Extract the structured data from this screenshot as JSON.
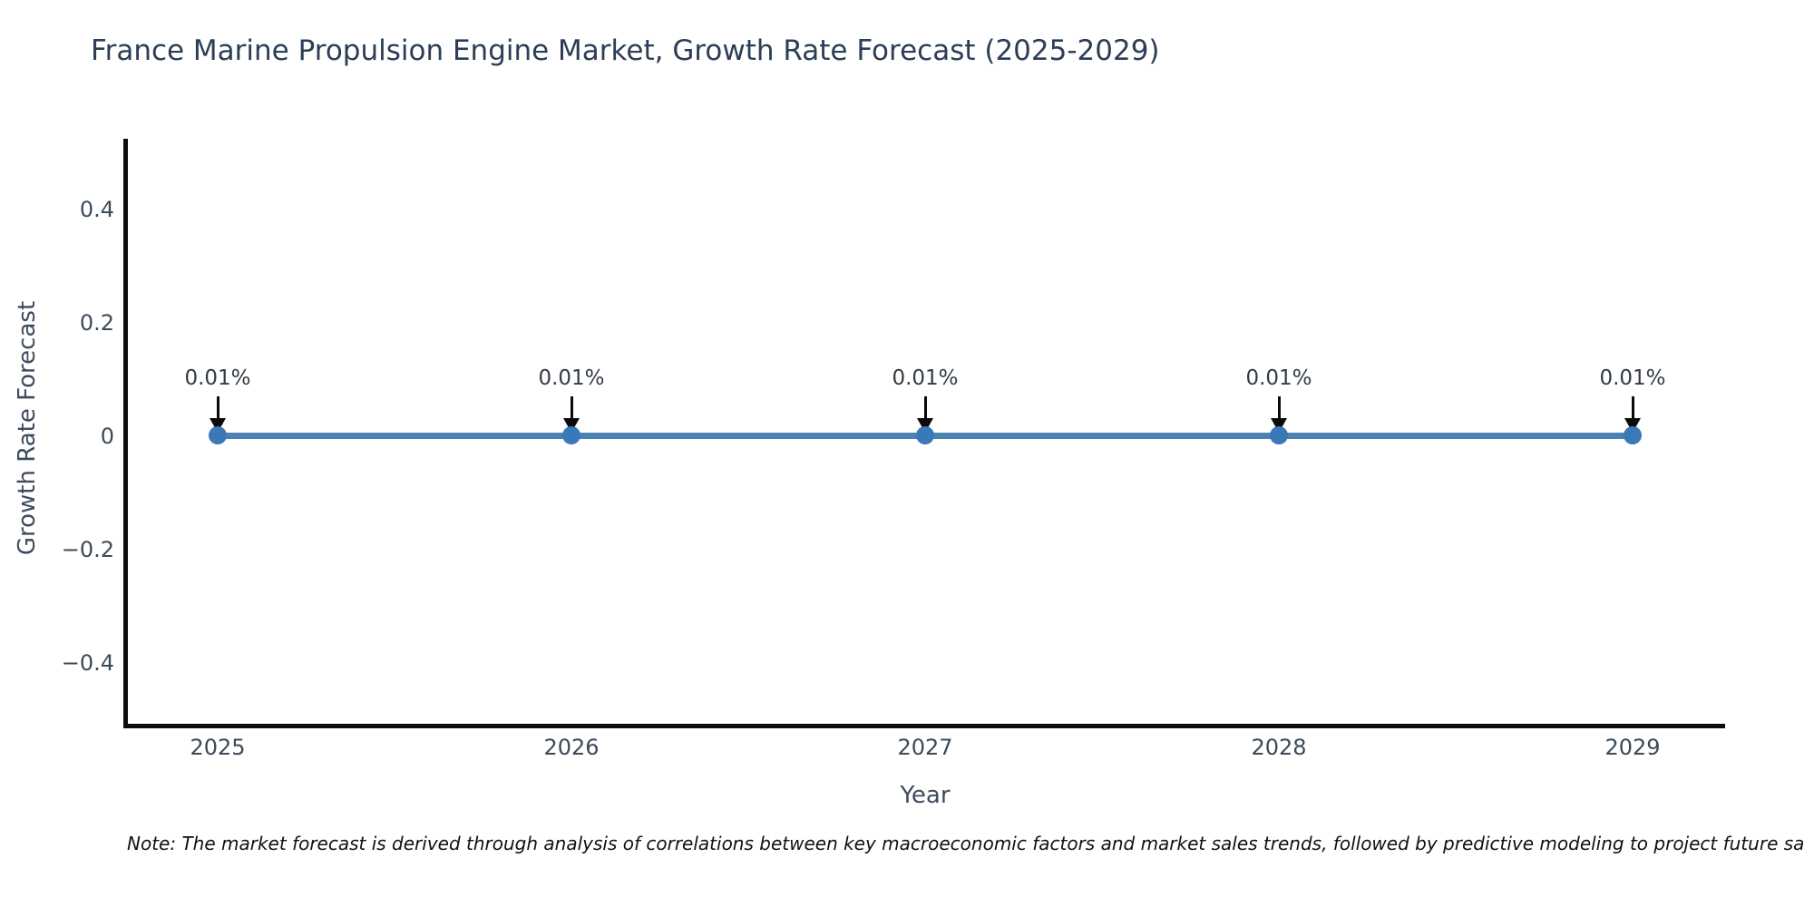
{
  "chart_data": {
    "type": "line",
    "title": "France Marine Propulsion Engine Market, Growth Rate Forecast (2025-2029)",
    "xlabel": "Year",
    "ylabel": "Growth Rate Forecast",
    "categories": [
      "2025",
      "2026",
      "2027",
      "2028",
      "2029"
    ],
    "series": [
      {
        "name": "Growth Rate Forecast",
        "values": [
          0.01,
          0.01,
          0.01,
          0.01,
          0.01
        ]
      }
    ],
    "point_labels": [
      "0.01%",
      "0.01%",
      "0.01%",
      "0.01%",
      "0.01%"
    ],
    "y_ticks": [
      "0.4",
      "0.2",
      "0",
      "−0.2",
      "−0.4"
    ],
    "ylim": [
      -0.5,
      0.5
    ],
    "grid": false,
    "legend_position": "none",
    "line_color": "#4d81b1",
    "marker_color": "#3a79b8",
    "annotation_arrow_color": "#0a0a0a",
    "axis_color": "#0d0d0d"
  },
  "note": "Note: The market forecast is derived through analysis of correlations between key macroeconomic factors and market sales trends, followed by predictive modeling to project future sa"
}
